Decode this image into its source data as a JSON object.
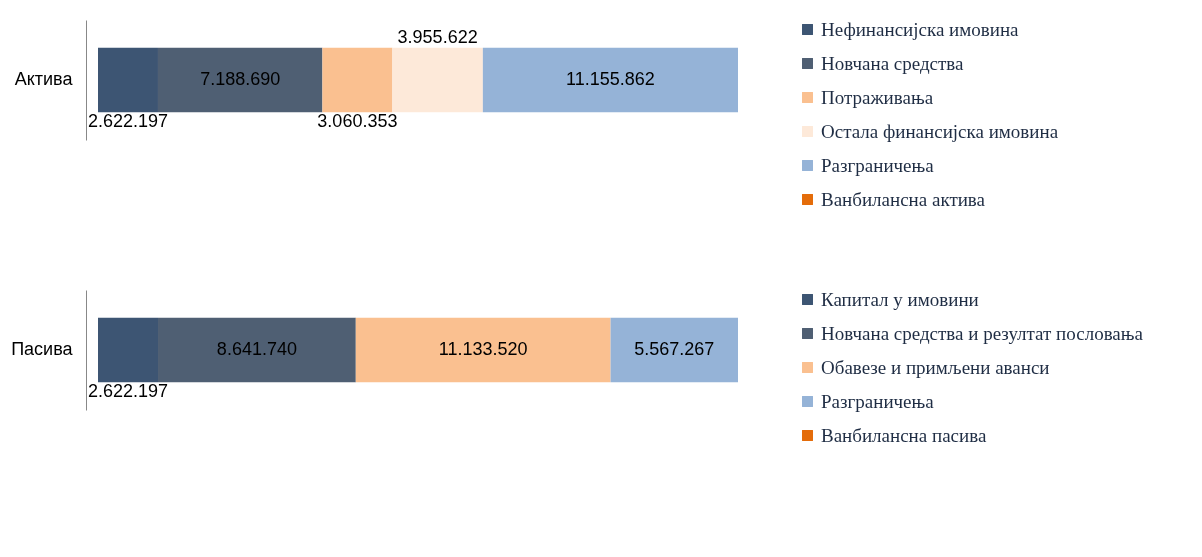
{
  "chart_data": [
    {
      "type": "bar",
      "orientation": "horizontal",
      "stacked": true,
      "categories": [
        "Актива"
      ],
      "tick_labels": "y",
      "legend": "right",
      "series": [
        {
          "name": "Нефинансијска имовина",
          "color": "#3d5573",
          "values": [
            2622197
          ],
          "value_labels": [
            "2.622.197"
          ]
        },
        {
          "name": "Новчана средства",
          "color": "#4f5f73",
          "values": [
            7188690
          ],
          "value_labels": [
            "7.188.690"
          ]
        },
        {
          "name": "Потраживања",
          "color": "#fac090",
          "values": [
            3060353
          ],
          "value_labels": [
            "3.060.353"
          ]
        },
        {
          "name": "Остала финансијска имовина",
          "color": "#fde9d9",
          "values": [
            3955622
          ],
          "value_labels": [
            "3.955.622"
          ]
        },
        {
          "name": "Разграничења",
          "color": "#95b3d7",
          "values": [
            11155862
          ],
          "value_labels": [
            "11.155.862"
          ]
        },
        {
          "name": "Ванбилансна актива",
          "color": "#e46c0a",
          "values": [
            null
          ],
          "value_labels": [
            null
          ]
        }
      ]
    },
    {
      "type": "bar",
      "orientation": "horizontal",
      "stacked": true,
      "categories": [
        "Пасива"
      ],
      "tick_labels": "y",
      "legend": "right",
      "series": [
        {
          "name": "Капитал у имовини",
          "color": "#3d5573",
          "values": [
            2622197
          ],
          "value_labels": [
            "2.622.197"
          ]
        },
        {
          "name": "Новчана средства и резултат пословања",
          "color": "#4f5f73",
          "values": [
            8641740
          ],
          "value_labels": [
            "8.641.740"
          ]
        },
        {
          "name": "Обавезе и примљени аванси",
          "color": "#fac090",
          "values": [
            11133520
          ],
          "value_labels": [
            "11.133.520"
          ]
        },
        {
          "name": "Разграничења",
          "color": "#95b3d7",
          "values": [
            5567267
          ],
          "value_labels": [
            "5.567.267"
          ]
        },
        {
          "name": "Ванбилансна пасива",
          "color": "#e46c0a",
          "values": [
            null
          ],
          "value_labels": [
            null
          ]
        }
      ]
    }
  ]
}
